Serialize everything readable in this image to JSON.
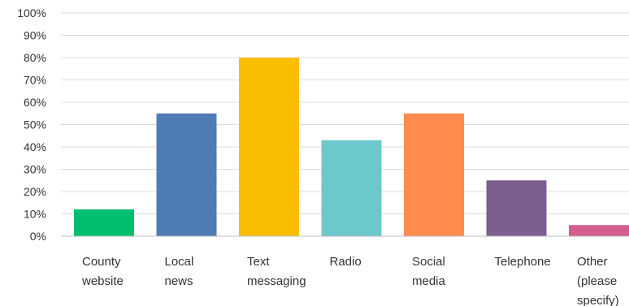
{
  "chart_data": {
    "type": "bar",
    "categories": [
      [
        "County",
        "website"
      ],
      [
        "Local",
        "news"
      ],
      [
        "Text",
        "messaging"
      ],
      [
        "Radio"
      ],
      [
        "Social",
        "media"
      ],
      [
        "Telephone"
      ],
      [
        "Other",
        "(please",
        "specify)"
      ]
    ],
    "values": [
      12,
      55,
      80,
      43,
      55,
      25,
      5
    ],
    "colors": [
      "#00bf6f",
      "#507cb6",
      "#f9be00",
      "#6bc8cd",
      "#ff8b4f",
      "#7d5e90",
      "#d25f90"
    ],
    "y_ticks": [
      "0%",
      "10%",
      "20%",
      "30%",
      "40%",
      "50%",
      "60%",
      "70%",
      "80%",
      "90%",
      "100%"
    ],
    "ylim": [
      0,
      100
    ],
    "grid": true,
    "legend": "none"
  }
}
